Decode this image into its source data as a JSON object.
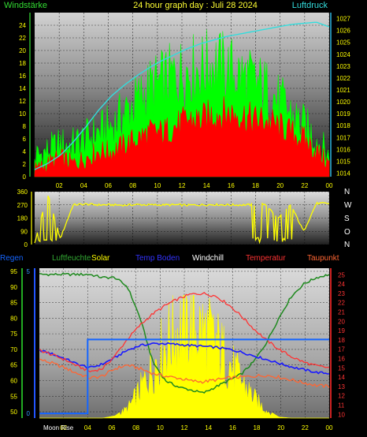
{
  "header": {
    "left_label": "Windstärke",
    "title": "24 hour graph day : Juli 28 2024",
    "right_label": "Luftdruck"
  },
  "colors": {
    "wind_label": "#33dd33",
    "title": "#ffff33",
    "pressure_label": "#33dddd",
    "gust": "#00ff00",
    "wind": "#ff0000",
    "pressure": "#33dddd",
    "direction": "#ffff00",
    "rain": "#1565ff",
    "humidity": "#1f8a1f",
    "solar": "#ffff00",
    "temp_ground": "#1a1aff",
    "windchill": "#ff8c3a",
    "temperature": "#ff3333",
    "dewpoint": "#ff6633",
    "axis_text": "#ffff00"
  },
  "legend": [
    {
      "key": "regen",
      "label": "Regen",
      "color": "#1565ff"
    },
    {
      "key": "luftfeuchte",
      "label": "Luftfeuchte",
      "color": "#33aa33"
    },
    {
      "key": "solar",
      "label": "Solar",
      "color": "#ffff00"
    },
    {
      "key": "temp_boden",
      "label": "Temp Boden",
      "color": "#3333ff"
    },
    {
      "key": "windchill",
      "label": "Windchill",
      "color": "#ffffff"
    },
    {
      "key": "temperatur",
      "label": "Temperatur",
      "color": "#ff3333"
    },
    {
      "key": "taupunkt",
      "label": "Taupunkt",
      "color": "#ff6633"
    }
  ],
  "compass": [
    "N",
    "W",
    "S",
    "O",
    "N"
  ],
  "moon_label": "Moon Rise",
  "chart_data": [
    {
      "type": "line",
      "name": "wind",
      "x_tick_labels": [
        "02",
        "04",
        "06",
        "08",
        "10",
        "12",
        "14",
        "16",
        "18",
        "20",
        "22",
        "00"
      ],
      "left_axis": {
        "ylim": [
          0,
          26
        ],
        "ticks": [
          0,
          2,
          4,
          6,
          8,
          10,
          12,
          14,
          16,
          18,
          20,
          22,
          24
        ]
      },
      "right_axis": {
        "ylim": [
          1013.7,
          1027.5
        ],
        "ticks": [
          1014,
          1015,
          1016,
          1017,
          1018,
          1019,
          1020,
          1021,
          1022,
          1023,
          1024,
          1025,
          1026,
          1027
        ]
      },
      "series": [
        {
          "name": "Windstärke",
          "values": [
            1,
            2,
            3,
            2,
            3,
            4,
            4,
            5,
            6,
            7,
            7,
            8,
            9,
            9,
            10,
            10,
            10,
            9,
            9,
            8,
            7,
            6,
            4,
            2
          ]
        },
        {
          "name": "Böen",
          "values": [
            3,
            4,
            5,
            5,
            6,
            7,
            8,
            10,
            12,
            14,
            15,
            16,
            17,
            17,
            18,
            17,
            16,
            15,
            14,
            12,
            10,
            8,
            6,
            3
          ]
        },
        {
          "name": "Luftdruck",
          "values": [
            1014.3,
            1014.8,
            1015.5,
            1016.6,
            1017.9,
            1019.3,
            1020.5,
            1021.4,
            1022.2,
            1022.9,
            1023.5,
            1024.0,
            1024.5,
            1024.9,
            1025.2,
            1025.5,
            1025.7,
            1025.9,
            1026.1,
            1026.3,
            1026.5,
            1026.6,
            1026.7,
            1026.3
          ]
        }
      ]
    },
    {
      "type": "line",
      "name": "wind_direction",
      "ylim": [
        0,
        360
      ],
      "ticks": [
        0,
        90,
        180,
        270,
        360
      ],
      "series": [
        {
          "name": "Windrichtung",
          "values": [
            10,
            350,
            40,
            270,
            275,
            270,
            270,
            268,
            272,
            270,
            270,
            270,
            268,
            270,
            272,
            270,
            270,
            270,
            275,
            180,
            270,
            90,
            280,
            280
          ]
        }
      ]
    },
    {
      "type": "line",
      "name": "weather",
      "x_tick_labels": [
        "02",
        "04",
        "06",
        "08",
        "10",
        "12",
        "14",
        "16",
        "18",
        "20",
        "22",
        "00"
      ],
      "left_axis": {
        "ylim": [
          48,
          96
        ],
        "ticks": [
          50,
          55,
          60,
          65,
          70,
          75,
          80,
          85,
          90,
          95
        ]
      },
      "rain_axis": {
        "ticks": [
          0,
          5
        ]
      },
      "right_axis": {
        "ylim": [
          9.6,
          25.7
        ],
        "ticks": [
          10,
          11,
          12,
          13,
          14,
          15,
          16,
          17,
          18,
          19,
          20,
          21,
          22,
          23,
          24,
          25
        ]
      },
      "series": [
        {
          "name": "Luftfeuchte",
          "values": [
            94,
            94,
            94,
            94,
            94,
            93,
            93,
            90,
            80,
            66,
            60,
            58,
            57,
            56,
            58,
            60,
            62,
            66,
            72,
            80,
            87,
            91,
            93,
            94
          ]
        },
        {
          "name": "Temperatur",
          "values": [
            16.9,
            16.4,
            15.9,
            15.2,
            14.6,
            14.9,
            16.3,
            18.1,
            19.6,
            20.8,
            21.7,
            22.4,
            22.9,
            23.0,
            22.7,
            21.8,
            20.6,
            19.2,
            18.0,
            17.0,
            16.2,
            15.6,
            15.2,
            15.0
          ]
        },
        {
          "name": "Temp Boden",
          "values": [
            16.9,
            16.5,
            16.0,
            15.4,
            15.0,
            15.4,
            16.1,
            16.9,
            17.4,
            17.6,
            17.6,
            17.5,
            17.4,
            17.3,
            17.2,
            17.0,
            16.7,
            16.3,
            15.9,
            15.5,
            15.1,
            14.8,
            14.5,
            14.4
          ]
        },
        {
          "name": "Taupunkt",
          "values": [
            15.9,
            15.5,
            15.0,
            14.4,
            13.9,
            14.1,
            14.9,
            15.3,
            14.9,
            14.4,
            14.1,
            13.9,
            13.6,
            13.5,
            13.7,
            13.9,
            14.0,
            14.1,
            14.2,
            14.0,
            13.7,
            13.4,
            13.1,
            13.0
          ]
        },
        {
          "name": "Solar",
          "values": [
            0,
            0,
            0,
            0,
            0,
            0,
            0.02,
            0.1,
            0.3,
            0.55,
            0.78,
            0.95,
            1.0,
            0.92,
            0.8,
            0.6,
            0.4,
            0.22,
            0.08,
            0.01,
            0,
            0,
            0,
            0
          ]
        },
        {
          "name": "Regen",
          "values": [
            0,
            0,
            0,
            0,
            2.6,
            2.6,
            2.6,
            2.6,
            2.6,
            2.6,
            2.6,
            2.6,
            2.6,
            2.6,
            2.6,
            2.6,
            2.6,
            2.6,
            2.6,
            2.6,
            2.6,
            2.6,
            2.6,
            2.6
          ]
        }
      ]
    }
  ]
}
